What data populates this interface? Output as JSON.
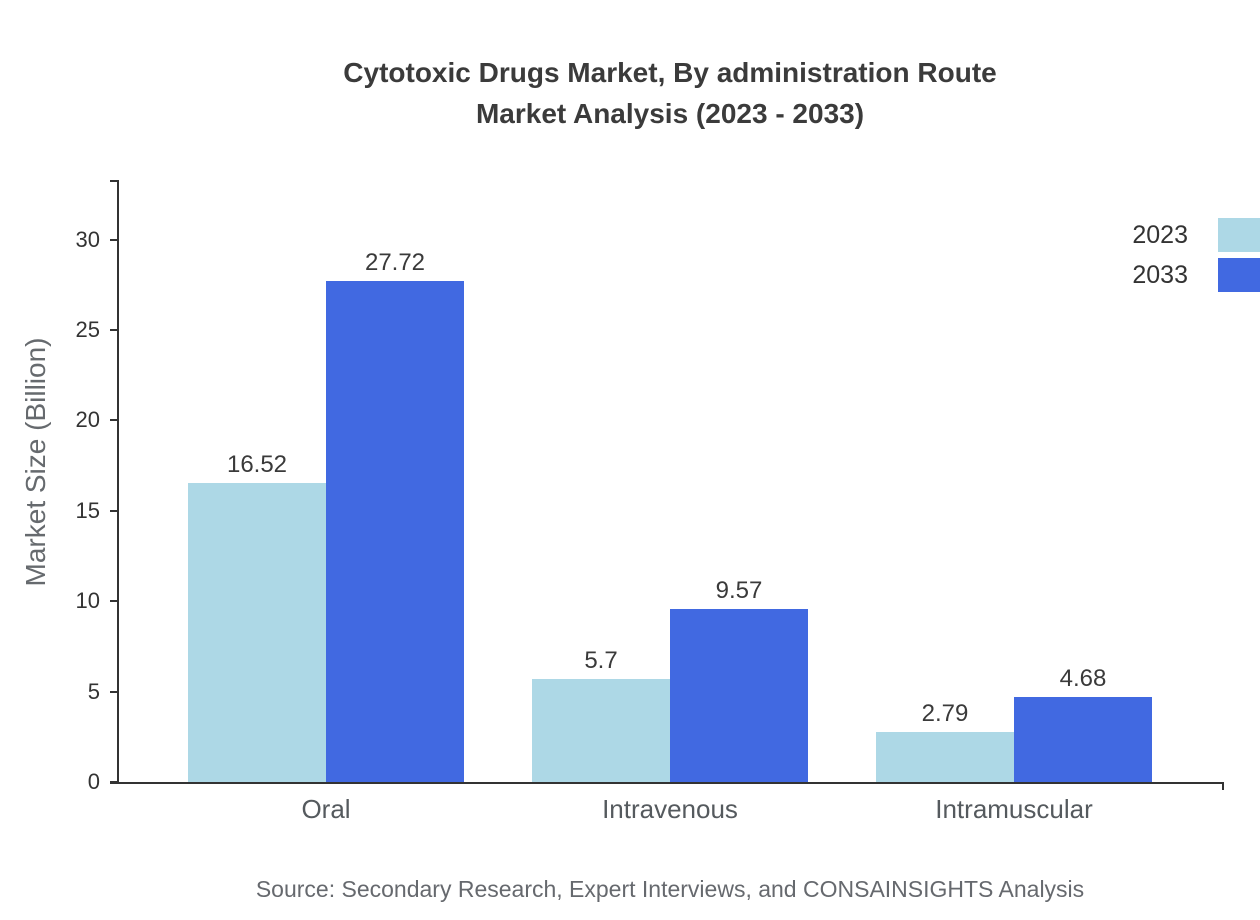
{
  "header": {
    "line1": "Cytotoxic Drugs Market, By administration Route",
    "line2": "Market Analysis (2023 - 2033)"
  },
  "footer": {
    "source": "Source: Secondary Research, Expert Interviews, and CONSAINSIGHTS Analysis"
  },
  "chart_data": {
    "type": "bar",
    "title": "Cytotoxic Drugs Market, By administration Route Market Analysis (2023 - 2033)",
    "categories": [
      "Oral",
      "Intravenous",
      "Intramuscular"
    ],
    "series": [
      {
        "name": "2023",
        "color": "#add8e6",
        "values": [
          16.52,
          5.7,
          2.79
        ]
      },
      {
        "name": "2033",
        "color": "#4169e1",
        "values": [
          27.72,
          9.57,
          4.68
        ]
      }
    ],
    "xlabel": "",
    "ylabel": "Market Size (Billion)",
    "ylim": [
      0,
      33.3
    ],
    "yticks": [
      0,
      5,
      10,
      15,
      20,
      25,
      30
    ],
    "legend_position": "top-right",
    "grid": false
  }
}
